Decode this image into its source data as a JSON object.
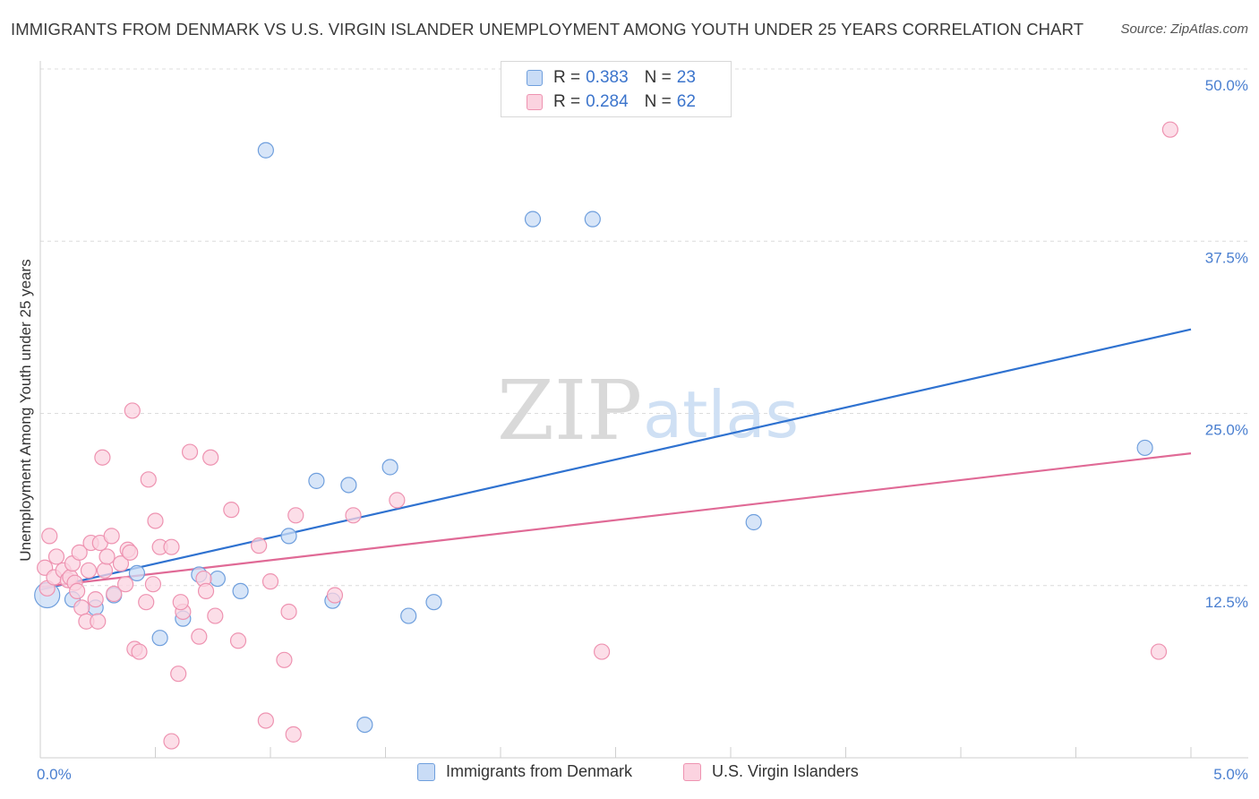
{
  "title": "IMMIGRANTS FROM DENMARK VS U.S. VIRGIN ISLANDER UNEMPLOYMENT AMONG YOUTH UNDER 25 YEARS CORRELATION CHART",
  "source": "Source: ZipAtlas.com",
  "watermark": {
    "zip": "ZIP",
    "atlas": "atlas"
  },
  "colors": {
    "blue_fill": "#c9dcf6",
    "blue_stroke": "#6f9fdd",
    "blue_line": "#2f72d0",
    "pink_fill": "#fbd3e0",
    "pink_stroke": "#ee93b1",
    "pink_line": "#e06a96",
    "tick_text": "#4a7fd0"
  },
  "legend": [
    {
      "r_label": "R = ",
      "r_value": "0.383",
      "n_label": "N = ",
      "n_value": "23"
    },
    {
      "r_label": "R = ",
      "r_value": "0.284",
      "n_label": "N = ",
      "n_value": "62"
    }
  ],
  "chart_data": {
    "type": "scatter",
    "title": "IMMIGRANTS FROM DENMARK VS U.S. VIRGIN ISLANDER UNEMPLOYMENT AMONG YOUTH UNDER 25 YEARS CORRELATION CHART",
    "xlabel": "",
    "ylabel": "Unemployment Among Youth under 25 years",
    "xlim": [
      0,
      5
    ],
    "ylim": [
      0,
      50
    ],
    "x_tick_labels": [
      "0.0%",
      "5.0%"
    ],
    "y_ticks": [
      12.5,
      25.0,
      37.5,
      50.0
    ],
    "y_tick_labels": [
      "12.5%",
      "25.0%",
      "37.5%",
      "50.0%"
    ],
    "grid": true,
    "series": [
      {
        "name": "Immigrants from Denmark",
        "color": "blue",
        "trend": {
          "x": [
            0.0,
            5.0
          ],
          "y": [
            12.2,
            31.1
          ]
        },
        "points": [
          [
            0.03,
            11.8
          ],
          [
            0.14,
            11.5
          ],
          [
            0.24,
            10.9
          ],
          [
            0.32,
            11.8
          ],
          [
            0.42,
            13.4
          ],
          [
            0.52,
            8.7
          ],
          [
            0.62,
            10.1
          ],
          [
            0.69,
            13.3
          ],
          [
            0.77,
            13.0
          ],
          [
            0.87,
            12.1
          ],
          [
            0.98,
            44.1
          ],
          [
            1.08,
            16.1
          ],
          [
            1.2,
            20.1
          ],
          [
            1.27,
            11.4
          ],
          [
            1.34,
            19.8
          ],
          [
            1.41,
            2.4
          ],
          [
            1.52,
            21.1
          ],
          [
            1.6,
            10.3
          ],
          [
            1.71,
            11.3
          ],
          [
            2.14,
            39.1
          ],
          [
            2.4,
            39.1
          ],
          [
            3.1,
            17.1
          ],
          [
            4.8,
            22.5
          ]
        ]
      },
      {
        "name": "U.S. Virgin Islanders",
        "color": "pink",
        "trend": {
          "x": [
            0.0,
            5.0
          ],
          "y": [
            12.4,
            22.1
          ]
        },
        "points": [
          [
            0.02,
            13.8
          ],
          [
            0.03,
            12.3
          ],
          [
            0.04,
            16.1
          ],
          [
            0.06,
            13.1
          ],
          [
            0.07,
            14.6
          ],
          [
            0.1,
            13.6
          ],
          [
            0.12,
            12.9
          ],
          [
            0.13,
            13.1
          ],
          [
            0.14,
            14.1
          ],
          [
            0.15,
            12.7
          ],
          [
            0.17,
            14.9
          ],
          [
            0.18,
            10.9
          ],
          [
            0.2,
            9.9
          ],
          [
            0.21,
            13.6
          ],
          [
            0.22,
            15.6
          ],
          [
            0.24,
            11.5
          ],
          [
            0.25,
            9.9
          ],
          [
            0.26,
            15.6
          ],
          [
            0.27,
            21.8
          ],
          [
            0.28,
            13.6
          ],
          [
            0.29,
            14.6
          ],
          [
            0.31,
            16.1
          ],
          [
            0.32,
            11.9
          ],
          [
            0.35,
            14.1
          ],
          [
            0.37,
            12.6
          ],
          [
            0.38,
            15.1
          ],
          [
            0.39,
            14.9
          ],
          [
            0.4,
            25.2
          ],
          [
            0.41,
            7.9
          ],
          [
            0.43,
            7.7
          ],
          [
            0.46,
            11.3
          ],
          [
            0.47,
            20.2
          ],
          [
            0.49,
            12.6
          ],
          [
            0.5,
            17.2
          ],
          [
            0.52,
            15.3
          ],
          [
            0.57,
            15.3
          ],
          [
            0.57,
            1.2
          ],
          [
            0.6,
            6.1
          ],
          [
            0.62,
            10.6
          ],
          [
            0.65,
            22.2
          ],
          [
            0.69,
            8.8
          ],
          [
            0.71,
            13.0
          ],
          [
            0.72,
            12.1
          ],
          [
            0.74,
            21.8
          ],
          [
            0.76,
            10.3
          ],
          [
            0.83,
            18.0
          ],
          [
            0.86,
            8.5
          ],
          [
            0.95,
            15.4
          ],
          [
            0.98,
            2.7
          ],
          [
            1.0,
            12.8
          ],
          [
            1.06,
            7.1
          ],
          [
            1.08,
            10.6
          ],
          [
            1.1,
            1.7
          ],
          [
            1.11,
            17.6
          ],
          [
            1.28,
            11.8
          ],
          [
            1.36,
            17.6
          ],
          [
            1.55,
            18.7
          ],
          [
            2.44,
            7.7
          ],
          [
            4.86,
            7.7
          ],
          [
            4.91,
            45.6
          ],
          [
            0.61,
            11.3
          ],
          [
            0.16,
            12.1
          ]
        ]
      }
    ]
  }
}
